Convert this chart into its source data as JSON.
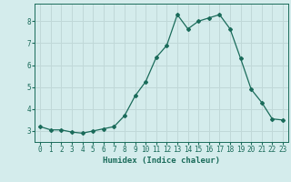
{
  "x": [
    0,
    1,
    2,
    3,
    4,
    5,
    6,
    7,
    8,
    9,
    10,
    11,
    12,
    13,
    14,
    15,
    16,
    17,
    18,
    19,
    20,
    21,
    22,
    23
  ],
  "y": [
    3.2,
    3.05,
    3.05,
    2.95,
    2.9,
    3.0,
    3.1,
    3.2,
    3.7,
    4.6,
    5.25,
    6.35,
    6.9,
    8.3,
    7.65,
    8.0,
    8.15,
    8.3,
    7.65,
    6.3,
    4.9,
    4.3,
    3.55,
    3.5
  ],
  "line_color": "#1a6b5a",
  "marker": "D",
  "marker_size": 2.0,
  "bg_color": "#d4ecec",
  "grid_color": "#c0d8d8",
  "xlabel": "Humidex (Indice chaleur)",
  "xlim": [
    -0.5,
    23.5
  ],
  "ylim": [
    2.5,
    8.8
  ],
  "yticks": [
    3,
    4,
    5,
    6,
    7,
    8
  ],
  "xticks": [
    0,
    1,
    2,
    3,
    4,
    5,
    6,
    7,
    8,
    9,
    10,
    11,
    12,
    13,
    14,
    15,
    16,
    17,
    18,
    19,
    20,
    21,
    22,
    23
  ],
  "tick_color": "#1a6b5a",
  "label_color": "#1a6b5a",
  "font_size_label": 6.5,
  "font_size_tick": 5.5,
  "linewidth": 0.9
}
